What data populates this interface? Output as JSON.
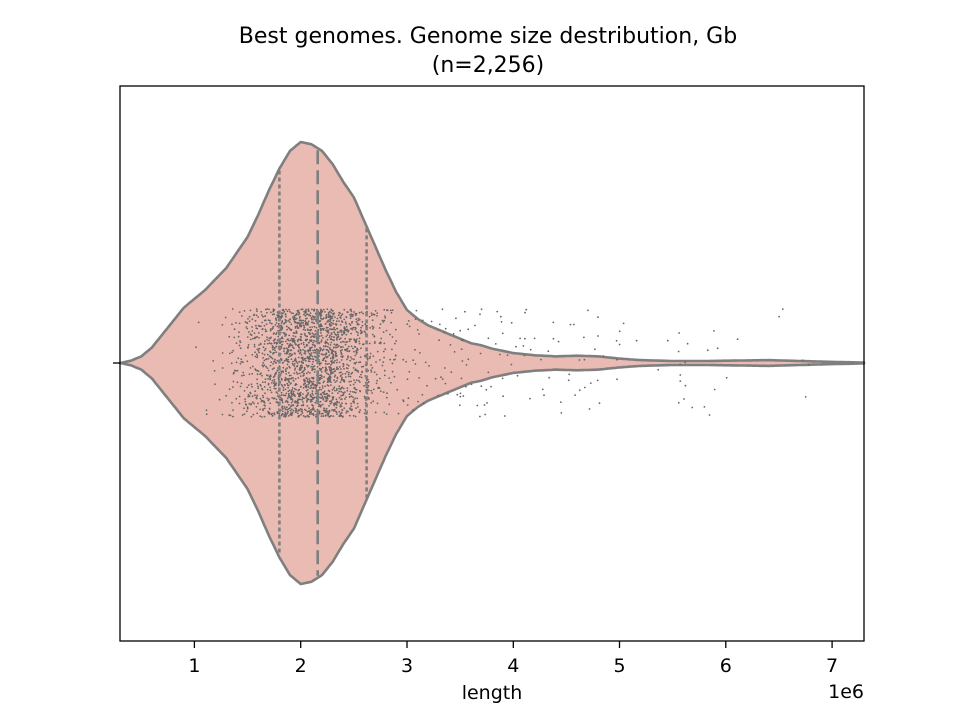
{
  "chart_data": {
    "type": "violin",
    "title_line1": "Best genomes. Genome size destribution, Gb",
    "title_line2": "(n=2,256)",
    "xlabel": "length",
    "offset_label": "1e6",
    "xlim": [
      300000,
      7300000
    ],
    "xticks": [
      1000000,
      2000000,
      3000000,
      4000000,
      5000000,
      6000000,
      7000000
    ],
    "xtick_labels": [
      "1",
      "2",
      "3",
      "4",
      "5",
      "6",
      "7"
    ],
    "grid": false,
    "n": 2256,
    "quartiles": {
      "q1": 1800000,
      "median": 2160000,
      "q3": 2620000
    },
    "density_profile": {
      "x": [
        300000,
        400000,
        500000,
        600000,
        700000,
        800000,
        900000,
        1000000,
        1100000,
        1200000,
        1300000,
        1400000,
        1500000,
        1600000,
        1700000,
        1800000,
        1900000,
        2000000,
        2100000,
        2200000,
        2300000,
        2400000,
        2500000,
        2600000,
        2700000,
        2800000,
        2900000,
        3000000,
        3100000,
        3200000,
        3300000,
        3400000,
        3500000,
        3600000,
        3700000,
        3800000,
        3900000,
        4000000,
        4200000,
        4400000,
        4600000,
        4800000,
        5000000,
        5200000,
        5500000,
        5800000,
        6100000,
        6400000,
        6700000,
        7000000,
        7300000
      ],
      "half_width": [
        0.0,
        0.01,
        0.03,
        0.07,
        0.13,
        0.19,
        0.25,
        0.29,
        0.33,
        0.38,
        0.43,
        0.5,
        0.57,
        0.67,
        0.78,
        0.88,
        0.96,
        1.0,
        0.99,
        0.96,
        0.9,
        0.82,
        0.75,
        0.64,
        0.53,
        0.42,
        0.32,
        0.24,
        0.2,
        0.17,
        0.15,
        0.13,
        0.11,
        0.09,
        0.08,
        0.065,
        0.055,
        0.045,
        0.035,
        0.03,
        0.033,
        0.03,
        0.02,
        0.013,
        0.009,
        0.009,
        0.011,
        0.013,
        0.009,
        0.005,
        0.002
      ]
    },
    "points_summary": "2,256 individual genome lengths shown as jittered strip points"
  }
}
